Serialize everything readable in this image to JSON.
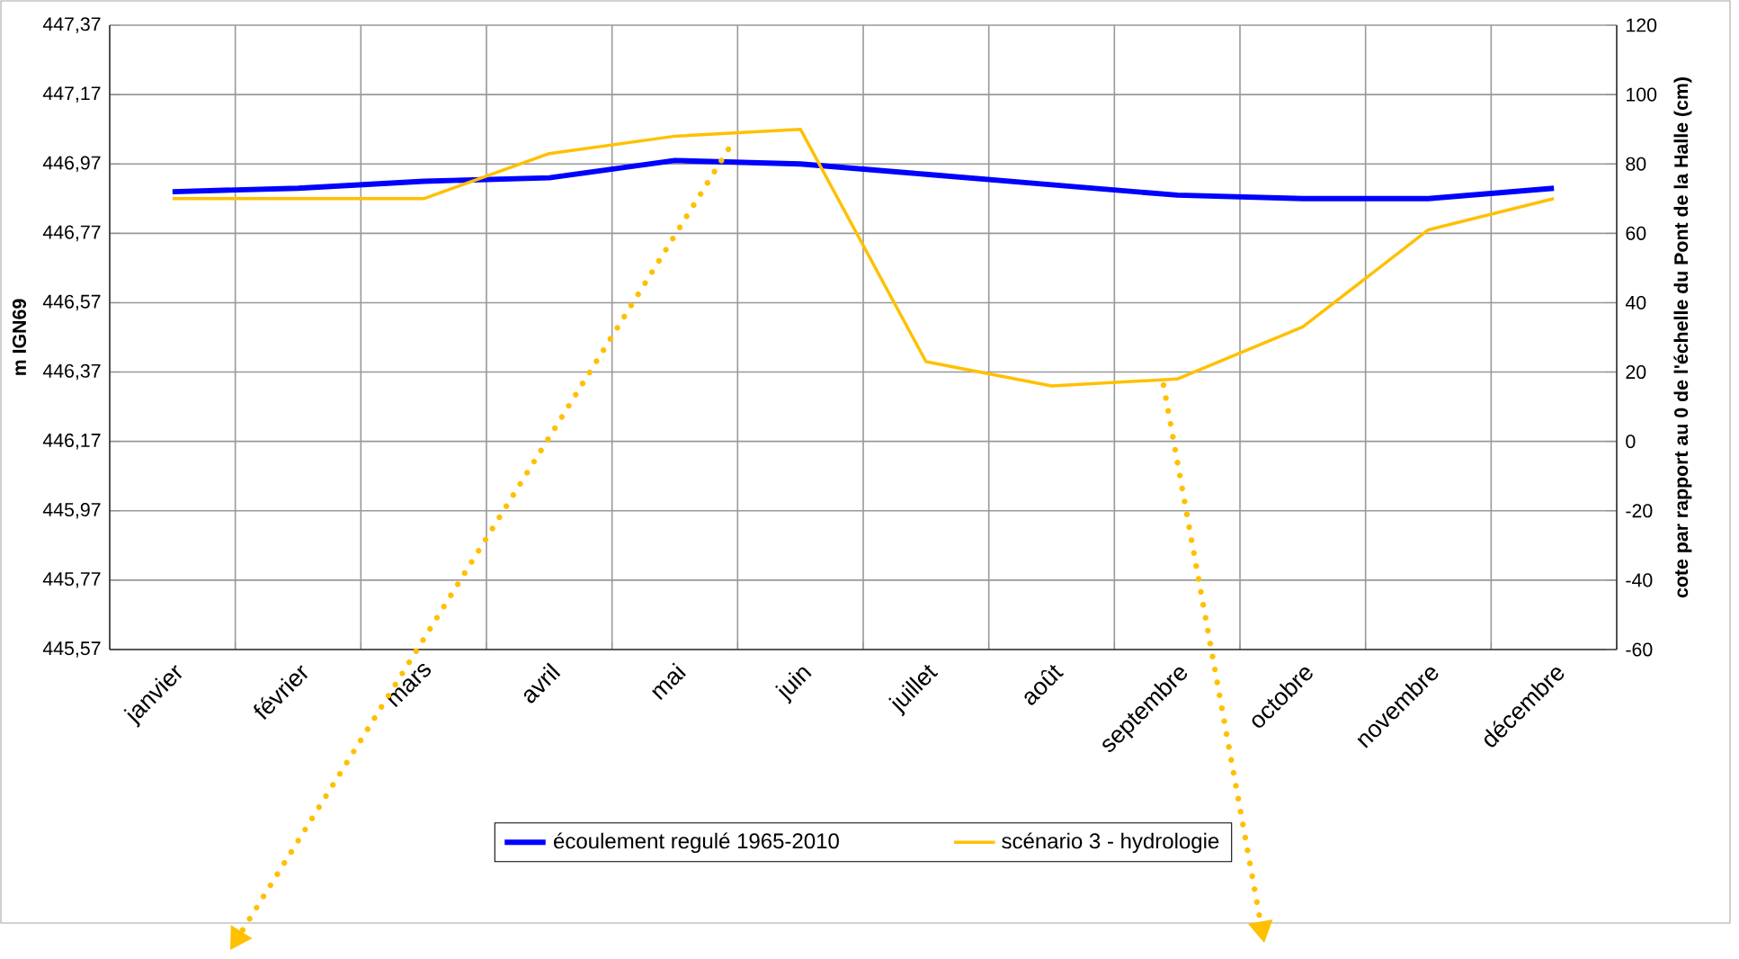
{
  "chart_data": {
    "type": "line",
    "ylabel": "m IGN69",
    "y2label": "cote par rapport au 0 de  l'échelle du Pont de la Halle (cm)",
    "categories": [
      "janvier",
      "février",
      "mars",
      "avril",
      "mai",
      "juin",
      "juillet",
      "août",
      "septembre",
      "octobre",
      "novembre",
      "décembre"
    ],
    "series": [
      {
        "name": "écoulement regulé      1965-2010",
        "color": "#0000ff",
        "axis": "y",
        "values": [
          446.89,
          446.9,
          446.92,
          446.93,
          446.98,
          446.97,
          446.94,
          446.91,
          446.88,
          446.87,
          446.87,
          446.9
        ]
      },
      {
        "name": "scénario 3 - hydrologie",
        "color": "#ffc000",
        "axis": "y2",
        "values": [
          70,
          70,
          70,
          83,
          88,
          90,
          23,
          16,
          18,
          33,
          61,
          70
        ]
      }
    ],
    "ylim": [
      445.57,
      447.37
    ],
    "yticks": [
      {
        "value": 445.57,
        "label": "445,57"
      },
      {
        "value": 445.77,
        "label": "445,77"
      },
      {
        "value": 445.97,
        "label": "445,97"
      },
      {
        "value": 446.17,
        "label": "446,17"
      },
      {
        "value": 446.37,
        "label": "446,37"
      },
      {
        "value": 446.57,
        "label": "446,57"
      },
      {
        "value": 446.77,
        "label": "446,77"
      },
      {
        "value": 446.97,
        "label": "446,97"
      },
      {
        "value": 447.17,
        "label": "447,17"
      },
      {
        "value": 447.37,
        "label": "447,37"
      }
    ],
    "y2lim": [
      -60,
      120
    ],
    "y2ticks": [
      -60,
      -40,
      -20,
      0,
      20,
      40,
      60,
      80,
      100,
      120
    ],
    "grid": true,
    "legend": "bottom",
    "marker": "none",
    "line_style": "solid"
  }
}
